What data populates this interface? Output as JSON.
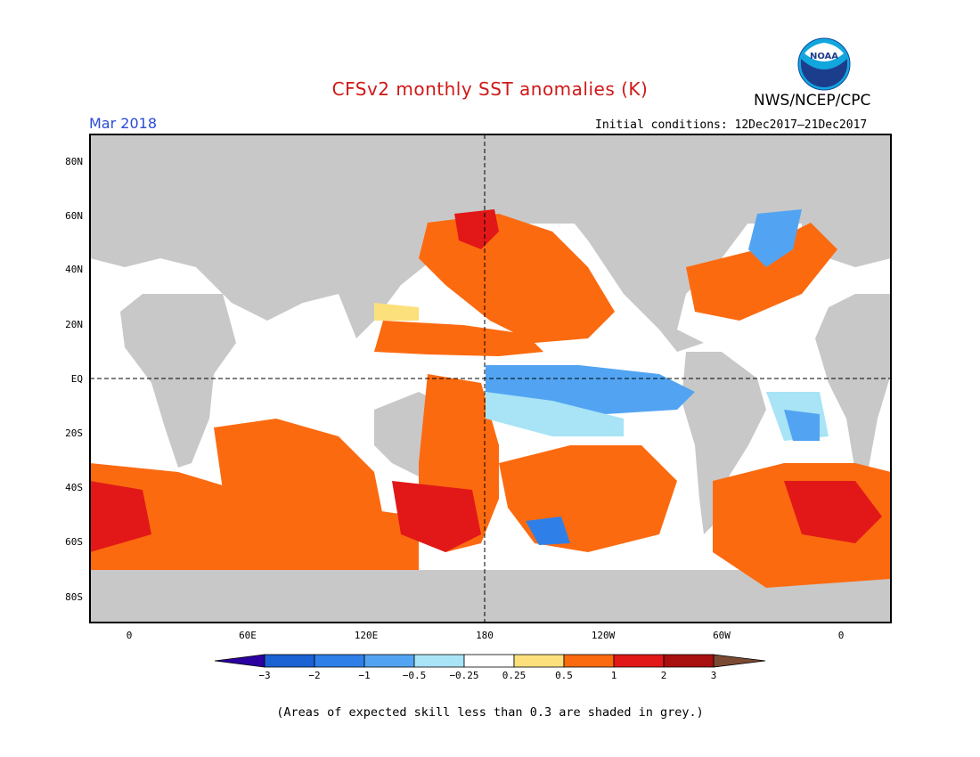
{
  "header": {
    "title": "CFSv2 monthly SST anomalies (K)",
    "agency": "NWS/NCEP/CPC",
    "logo_text": "NOAA",
    "month": "Mar 2018",
    "initial_conditions": "Initial conditions: 12Dec2017–21Dec2017"
  },
  "map": {
    "y_ticks": [
      "80N",
      "60N",
      "40N",
      "20N",
      "EQ",
      "20S",
      "40S",
      "60S",
      "80S"
    ],
    "x_ticks": [
      "0",
      "60E",
      "120E",
      "180",
      "120W",
      "60W",
      "0"
    ],
    "reference_lines": [
      "equator",
      "dateline"
    ]
  },
  "colorbar": {
    "labels": [
      "−3",
      "−2",
      "−1",
      "−0.5",
      "−0.25",
      "0.25",
      "0.5",
      "1",
      "2",
      "3"
    ],
    "colors": [
      "#2c00a0",
      "#1a62d4",
      "#2e80e8",
      "#52a4f2",
      "#a8e4f6",
      "#ffffff",
      "#fbe07c",
      "#fc6a10",
      "#e21818",
      "#a80f0f",
      "#7a4a32"
    ]
  },
  "footnote": "(Areas of expected skill less than 0.3 are shaded in grey.)",
  "colors": {
    "title": "#d01818",
    "month": "#2a4bd8",
    "skill_mask_grey": "#c8c8c8",
    "ocean_base": "#ffffff"
  }
}
